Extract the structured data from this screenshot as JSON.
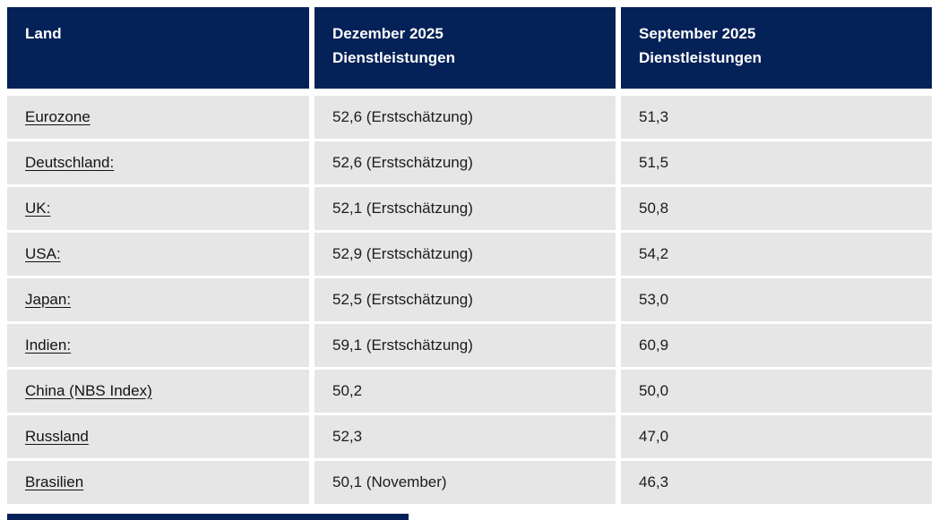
{
  "colors": {
    "header_bg": "#042158",
    "header_text": "#ffffff",
    "row_bg": "#e6e6e6",
    "cell_text": "#1c1c1c",
    "link_text": "#131313",
    "page_bg": "#ffffff"
  },
  "chart_data": {
    "type": "table",
    "columns": [
      "Land",
      "Dezember 2025 Dienstleistungen",
      "September 2025 Dienstleistungen"
    ],
    "rows": [
      [
        "Eurozone",
        "52,6 (Erstschätzung)",
        "51,3"
      ],
      [
        "Deutschland:",
        "52,6 (Erstschätzung)",
        "51,5"
      ],
      [
        "UK:",
        "52,1 (Erstschätzung)",
        "50,8"
      ],
      [
        "USA:",
        "52,9 (Erstschätzung)",
        "54,2"
      ],
      [
        "Japan:",
        "52,5 (Erstschätzung)",
        "53,0"
      ],
      [
        "Indien:",
        "59,1 (Erstschätzung)",
        "60,9"
      ],
      [
        "China (NBS Index)",
        "50,2",
        "50,0"
      ],
      [
        "Russland",
        "52,3",
        "47,0"
      ],
      [
        "Brasilien",
        "50,1 (November)",
        "46,3"
      ]
    ]
  }
}
